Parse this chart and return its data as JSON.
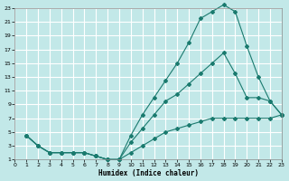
{
  "xlabel": "Humidex (Indice chaleur)",
  "bg_color": "#c2e8e8",
  "grid_color": "#ffffff",
  "line_color": "#1a7a6e",
  "xlim": [
    0,
    23
  ],
  "ylim": [
    1,
    23
  ],
  "xticks": [
    0,
    1,
    2,
    3,
    4,
    5,
    6,
    7,
    8,
    9,
    10,
    11,
    12,
    13,
    14,
    15,
    16,
    17,
    18,
    19,
    20,
    21,
    22,
    23
  ],
  "yticks": [
    1,
    3,
    5,
    7,
    9,
    11,
    13,
    15,
    17,
    19,
    21,
    23
  ],
  "line1_x": [
    1,
    2,
    3,
    4,
    5,
    6,
    7,
    8,
    9,
    10,
    11,
    12,
    13,
    14,
    15,
    16,
    17,
    18,
    19,
    20,
    21,
    22,
    23
  ],
  "line1_y": [
    4.5,
    3.0,
    2.0,
    2.0,
    2.0,
    2.0,
    1.5,
    1.0,
    1.0,
    4.5,
    7.5,
    10.0,
    12.5,
    15.0,
    18.0,
    21.5,
    22.5,
    23.5,
    22.5,
    17.5,
    13.0,
    9.5,
    7.5
  ],
  "line2_x": [
    1,
    2,
    3,
    4,
    5,
    6,
    7,
    8,
    9,
    10,
    11,
    12,
    13,
    14,
    15,
    16,
    17,
    18,
    19,
    20,
    21,
    22,
    23
  ],
  "line2_y": [
    4.5,
    3.0,
    2.0,
    2.0,
    2.0,
    2.0,
    1.5,
    1.0,
    1.0,
    3.5,
    5.5,
    7.5,
    9.5,
    10.5,
    12.0,
    13.5,
    15.0,
    16.5,
    13.5,
    10.0,
    10.0,
    9.5,
    7.5
  ],
  "line3_x": [
    1,
    2,
    3,
    4,
    5,
    6,
    7,
    8,
    9,
    10,
    11,
    12,
    13,
    14,
    15,
    16,
    17,
    18,
    19,
    20,
    21,
    22,
    23
  ],
  "line3_y": [
    4.5,
    3.0,
    2.0,
    2.0,
    2.0,
    2.0,
    1.5,
    1.0,
    1.0,
    2.0,
    3.0,
    4.0,
    5.0,
    5.5,
    6.0,
    6.5,
    7.0,
    7.0,
    7.0,
    7.0,
    7.0,
    7.0,
    7.5
  ]
}
